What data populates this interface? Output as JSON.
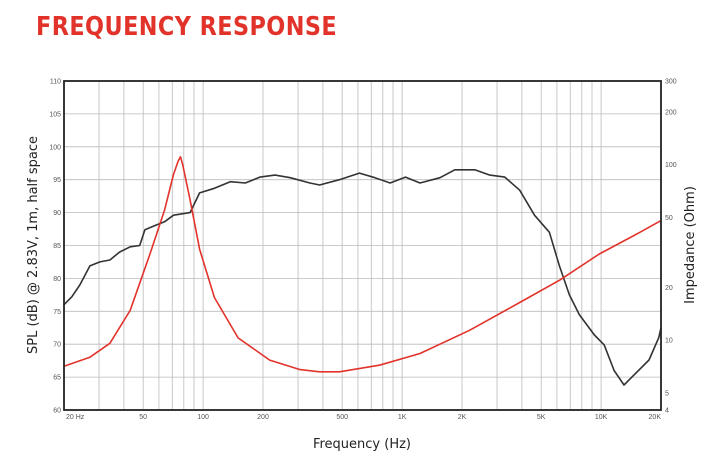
{
  "title": "FREQUENCY RESPONSE",
  "chart_data": {
    "type": "line",
    "title": "FREQUENCY RESPONSE",
    "xlabel": "Frequency (Hz)",
    "ylabel": "SPL (dB) @ 2.83V, 1m, half space",
    "y2label": "Impedance (Ohm)",
    "xscale": "log",
    "xlim": [
      20,
      20000
    ],
    "ylim": [
      60,
      110
    ],
    "y2lim": [
      4,
      300
    ],
    "y2scale": "log",
    "grid": true,
    "x_ticks": [
      {
        "v": 20,
        "label": "20  Hz"
      },
      {
        "v": 50,
        "label": "50"
      },
      {
        "v": 100,
        "label": "100"
      },
      {
        "v": 200,
        "label": "200"
      },
      {
        "v": 500,
        "label": "500"
      },
      {
        "v": 1000,
        "label": "1K"
      },
      {
        "v": 2000,
        "label": "2K"
      },
      {
        "v": 5000,
        "label": "5K"
      },
      {
        "v": 10000,
        "label": "10K"
      },
      {
        "v": 20000,
        "label": "20K"
      }
    ],
    "y_ticks": [
      "60",
      "65",
      "70",
      "75",
      "80",
      "85",
      "90",
      "95",
      "100",
      "105",
      "110"
    ],
    "y2_ticks": [
      "4",
      "5",
      "10",
      "20",
      "50",
      "100",
      "200",
      "300"
    ],
    "series": [
      {
        "name": "SPL",
        "axis": "left",
        "color": "#333333",
        "x": [
          20,
          21.9,
          24,
          27,
          30.3,
          34,
          38,
          43,
          48,
          51,
          57,
          64,
          71,
          86,
          96,
          114,
          137,
          163,
          193,
          230,
          274,
          344,
          385,
          484,
          610,
          730,
          870,
          1040,
          1230,
          1550,
          1840,
          2320,
          2760,
          3280,
          3900,
          4630,
          5500,
          6160,
          6930,
          7770,
          9250,
          10370,
          11630,
          13040,
          14620,
          17400,
          19500,
          20000
        ],
        "y": [
          76,
          77.2,
          79,
          81.9,
          82.5,
          82.8,
          84,
          84.8,
          85,
          87.4,
          88,
          88.6,
          89.6,
          90,
          93,
          93.7,
          94.7,
          94.5,
          95.4,
          95.7,
          95.3,
          94.5,
          94.2,
          95,
          96,
          95.3,
          94.5,
          95.4,
          94.5,
          95.3,
          96.5,
          96.5,
          95.7,
          95.4,
          93.4,
          89.6,
          87,
          82,
          77.5,
          74.5,
          71.4,
          69.9,
          66,
          63.8,
          65.3,
          67.6,
          71,
          72.5
        ]
      },
      {
        "name": "Impedance",
        "axis": "right",
        "color": "#e2332b",
        "x": [
          20,
          27,
          34,
          43,
          54,
          64,
          71,
          75,
          77,
          79,
          86,
          96,
          114,
          150,
          216,
          307,
          385,
          484,
          769,
          1230,
          2190,
          3900,
          6200,
          9800,
          15550,
          20000
        ],
        "y": [
          7.1,
          8.0,
          9.6,
          14.8,
          30.8,
          55,
          88,
          105,
          111,
          100,
          63,
          33,
          17.5,
          10.3,
          7.7,
          6.8,
          6.6,
          6.6,
          7.2,
          8.4,
          11.4,
          16.4,
          22,
          31,
          41,
          48
        ]
      }
    ]
  }
}
